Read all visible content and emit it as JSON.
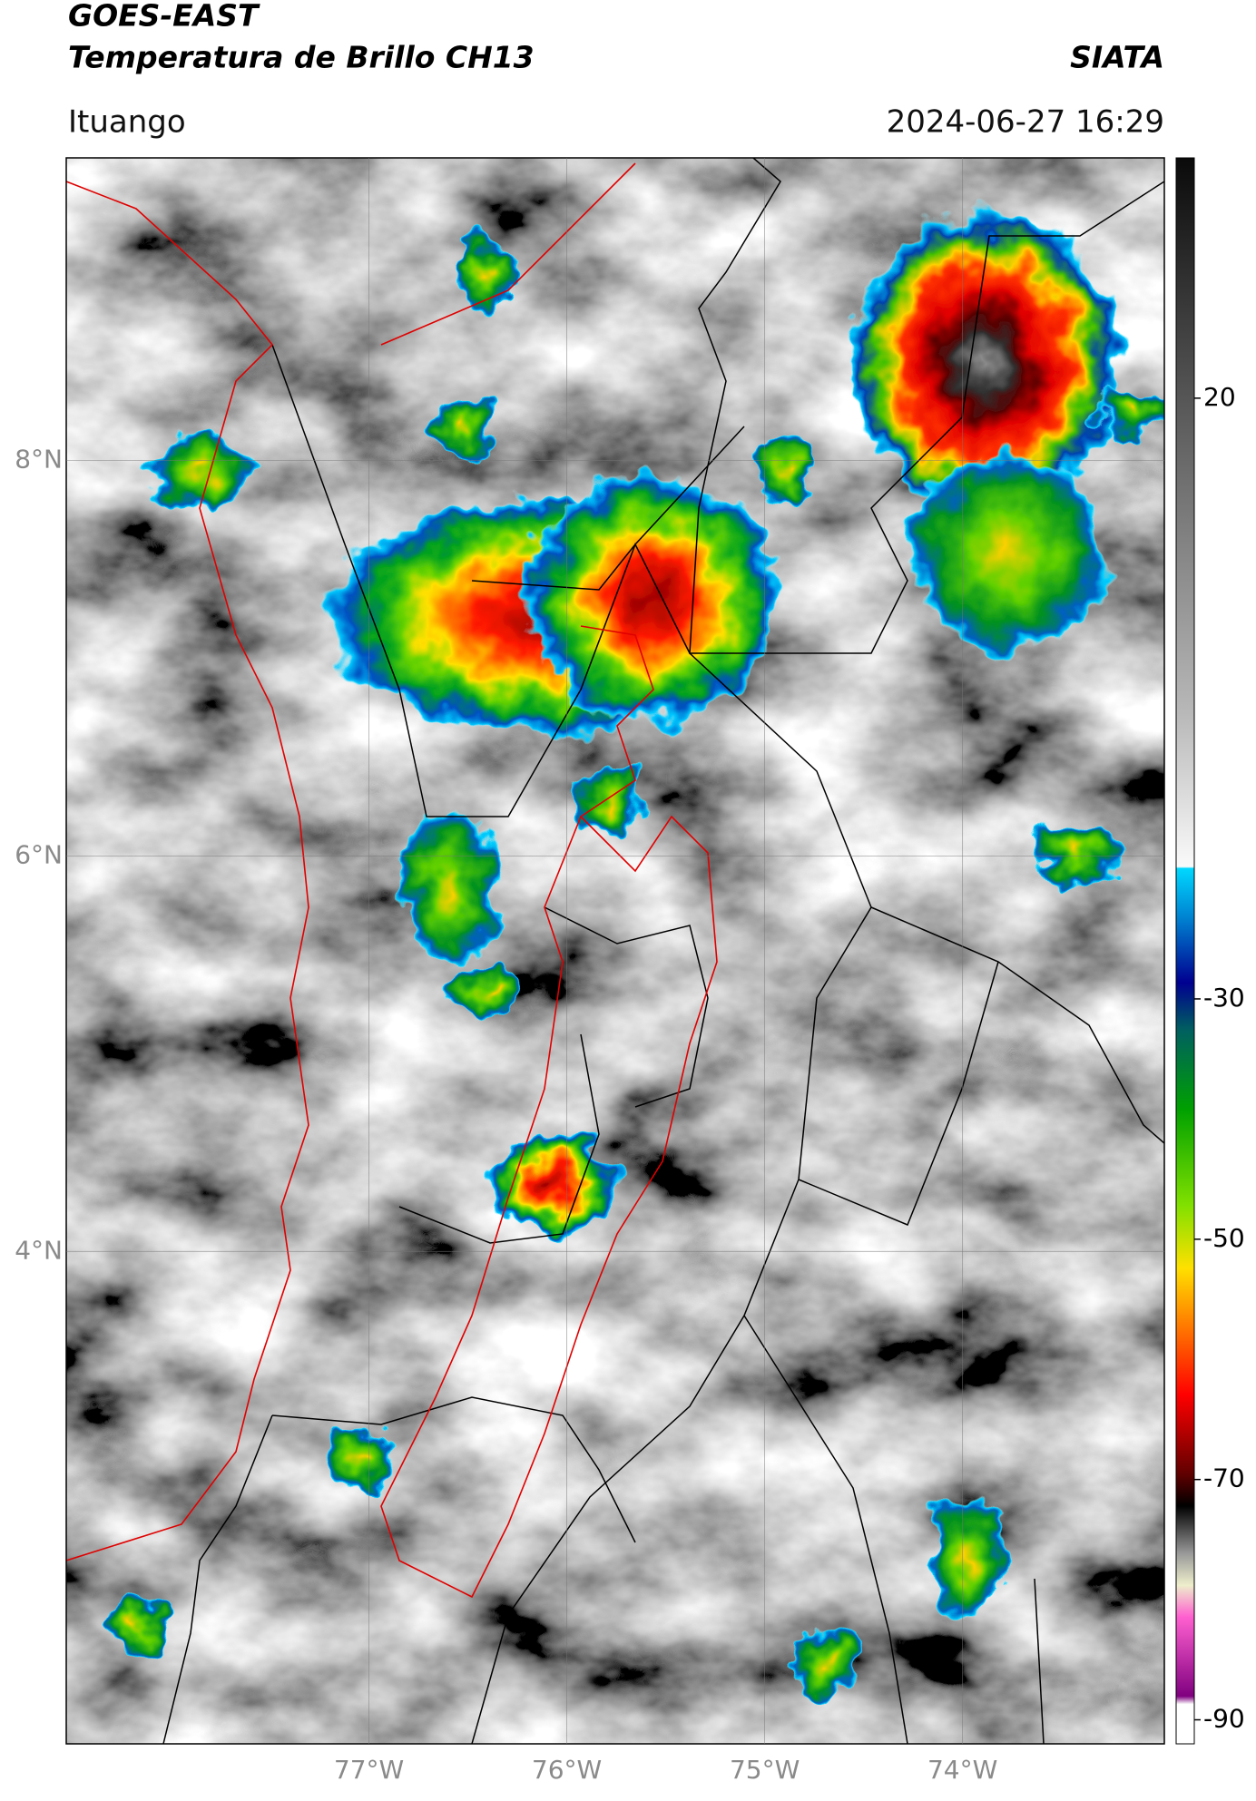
{
  "header": {
    "satellite": "GOES-EAST",
    "product": "Temperatura de Brillo CH13",
    "agency": "SIATA",
    "location": "Ituango",
    "datetime": "2024-06-27 16:29"
  },
  "map": {
    "lon_range": [
      -78.53,
      -72.98
    ],
    "lat_range": [
      1.51,
      9.53
    ],
    "lat_ticks": [
      {
        "value": 8,
        "label": "8°N"
      },
      {
        "value": 6,
        "label": "6°N"
      },
      {
        "value": 4,
        "label": "4°N"
      }
    ],
    "lon_ticks": [
      {
        "value": -77,
        "label": "77°W"
      },
      {
        "value": -76,
        "label": "76°W"
      },
      {
        "value": -75,
        "label": "75°W"
      },
      {
        "value": -74,
        "label": "74°W"
      }
    ]
  },
  "colorbar": {
    "range": [
      40,
      -92
    ],
    "ticks": [
      20,
      -30,
      -50,
      -70,
      -90
    ]
  }
}
